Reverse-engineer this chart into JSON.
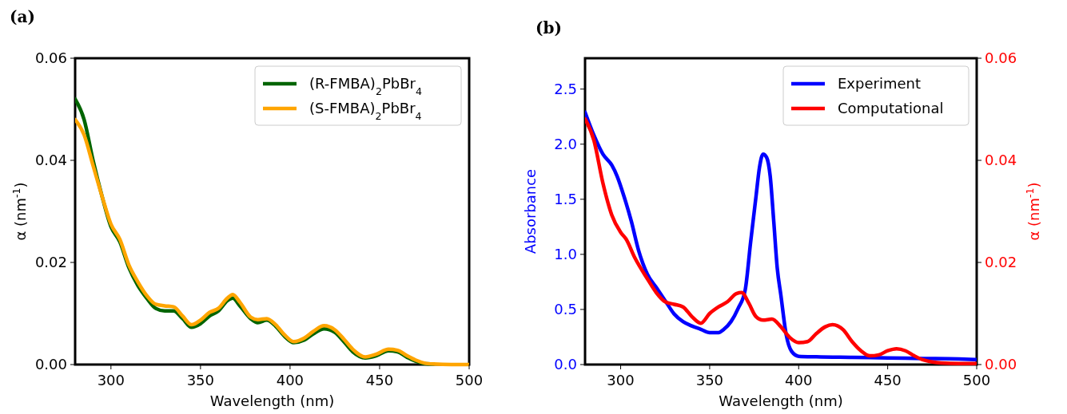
{
  "chart_data": [
    {
      "type": "line",
      "title": "(a)",
      "xlabel": "Wavelength (nm)",
      "ylabel": "α (nm$^{-1}$)",
      "xlim": [
        280,
        500
      ],
      "xticks": [
        300,
        350,
        400,
        450,
        500
      ],
      "ylim": [
        0,
        0.06
      ],
      "yticks": [
        {
          "value": 0,
          "label": "0.00"
        },
        {
          "value": 0.02,
          "label": "0.02"
        },
        {
          "value": 0.04,
          "label": "0.04"
        },
        {
          "value": 0.06,
          "label": "0.06"
        }
      ],
      "legend": "top right",
      "grid": false,
      "x": [
        280,
        285,
        290,
        295,
        300,
        305,
        310,
        315,
        320,
        325,
        330,
        335,
        340,
        345,
        350,
        355,
        360,
        365,
        368,
        372,
        378,
        382,
        387,
        392,
        397,
        402,
        408,
        413,
        419,
        425,
        430,
        435,
        442,
        448,
        455,
        460,
        465,
        470,
        475,
        480,
        490,
        500
      ],
      "series": [
        {
          "name": "(R-FMBA)$_{2}$PbBr$_{4}$",
          "color": "#006400",
          "values": [
            0.052,
            0.048,
            0.04,
            0.033,
            0.027,
            0.024,
            0.019,
            0.0155,
            0.013,
            0.011,
            0.0105,
            0.0105,
            0.009,
            0.0073,
            0.008,
            0.0095,
            0.0105,
            0.0125,
            0.013,
            0.0115,
            0.009,
            0.0082,
            0.0087,
            0.0075,
            0.0055,
            0.0043,
            0.0048,
            0.006,
            0.007,
            0.0063,
            0.0045,
            0.0025,
            0.0013,
            0.0017,
            0.0027,
            0.0025,
            0.0015,
            0.0007,
            0.0002,
            0.0001,
            null,
            null
          ]
        },
        {
          "name": "(S-FMBA)$_{2}$PbBr$_{4}$",
          "color": "#ffa500",
          "values": [
            0.048,
            0.045,
            0.039,
            0.033,
            0.0275,
            0.0245,
            0.0195,
            0.0162,
            0.0135,
            0.0118,
            0.0115,
            0.0113,
            0.0095,
            0.0078,
            0.0087,
            0.0102,
            0.011,
            0.013,
            0.0137,
            0.0122,
            0.0093,
            0.0088,
            0.009,
            0.0078,
            0.0058,
            0.0045,
            0.0052,
            0.0065,
            0.0076,
            0.0068,
            0.005,
            0.003,
            0.0015,
            0.002,
            0.003,
            0.0028,
            0.0018,
            0.0009,
            0.0003,
            0.0001,
            0,
            0
          ]
        }
      ]
    },
    {
      "type": "line",
      "title": "(b)",
      "xlabel": "Wavelength (nm)",
      "ylabel": "Absorbance",
      "y2label": "α (nm$^{-1}$)",
      "xlim": [
        280,
        500
      ],
      "xticks": [
        300,
        350,
        400,
        450,
        500
      ],
      "ylim": [
        0,
        2.78
      ],
      "yticks": [
        {
          "value": 0,
          "label": "0.0"
        },
        {
          "value": 0.5,
          "label": "0.5"
        },
        {
          "value": 1,
          "label": "1.0"
        },
        {
          "value": 1.5,
          "label": "1.5"
        },
        {
          "value": 2,
          "label": "2.0"
        },
        {
          "value": 2.5,
          "label": "2.5"
        }
      ],
      "y2lim": [
        0,
        0.06
      ],
      "y2ticks": [
        {
          "value": 0,
          "label": "0.00"
        },
        {
          "value": 0.02,
          "label": "0.02"
        },
        {
          "value": 0.04,
          "label": "0.04"
        },
        {
          "value": 0.06,
          "label": "0.06"
        }
      ],
      "legend": "top right",
      "grid": false,
      "series": [
        {
          "name": "Experiment",
          "color": "#0000ff",
          "x": [
            280,
            285,
            290,
            295,
            298,
            302,
            306,
            310,
            315,
            320,
            325,
            330,
            335,
            340,
            345,
            350,
            355,
            358,
            362,
            366,
            370,
            373,
            376,
            378,
            380,
            382,
            384,
            386,
            388,
            390,
            393,
            396,
            400,
            410,
            430,
            450,
            470,
            490,
            500
          ],
          "values": [
            2.29,
            2.08,
            1.91,
            1.81,
            1.71,
            1.52,
            1.3,
            1.04,
            0.82,
            0.7,
            0.58,
            0.46,
            0.39,
            0.35,
            0.32,
            0.29,
            0.29,
            0.32,
            0.39,
            0.51,
            0.68,
            1.11,
            1.52,
            1.79,
            1.91,
            1.88,
            1.71,
            1.3,
            0.87,
            0.63,
            0.27,
            0.12,
            0.075,
            0.07,
            0.065,
            0.06,
            0.055,
            0.05,
            0.045
          ]
        },
        {
          "name": "Computational",
          "color": "#ff0000",
          "axis": "y2",
          "x": [
            280,
            285,
            290,
            295,
            300,
            303,
            308,
            315,
            320,
            325,
            330,
            335,
            340,
            345,
            350,
            355,
            360,
            365,
            368,
            372,
            376,
            380,
            385,
            390,
            395,
            400,
            405,
            410,
            415,
            419,
            425,
            430,
            435,
            440,
            445,
            450,
            455,
            460,
            465,
            470,
            475,
            480,
            490,
            500
          ],
          "values": [
            0.0481,
            0.0439,
            0.0356,
            0.0293,
            0.0259,
            0.0246,
            0.0209,
            0.0168,
            0.0141,
            0.0123,
            0.0118,
            0.0113,
            0.0094,
            0.0081,
            0.01,
            0.0113,
            0.0123,
            0.0139,
            0.0141,
            0.012,
            0.0094,
            0.0087,
            0.0089,
            0.0074,
            0.0053,
            0.0043,
            0.0045,
            0.0061,
            0.0074,
            0.0078,
            0.0068,
            0.0045,
            0.0027,
            0.0017,
            0.0019,
            0.0027,
            0.0031,
            0.0027,
            0.0017,
            0.0009,
            0.0005,
            0.0003,
            0.0002,
            0.0002
          ]
        }
      ]
    }
  ]
}
